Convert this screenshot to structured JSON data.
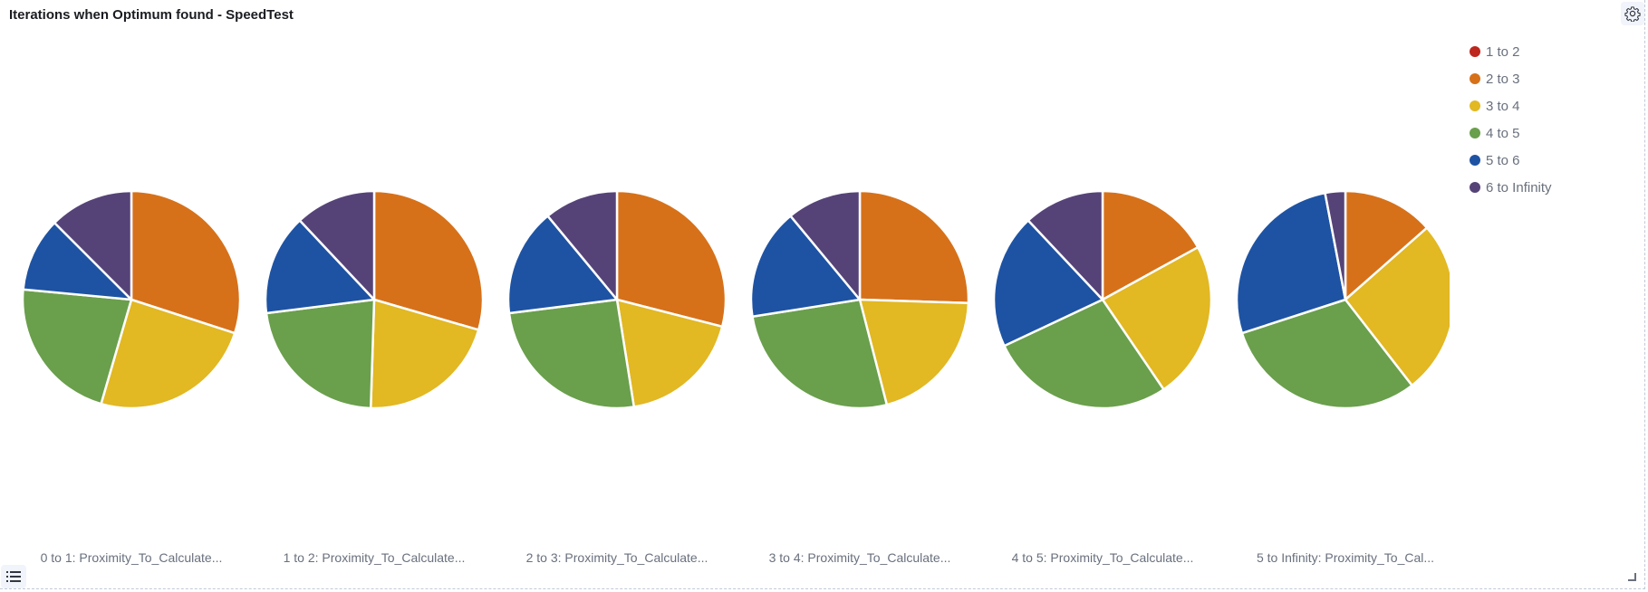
{
  "panel": {
    "title": "Iterations when Optimum found - SpeedTest"
  },
  "icons": {
    "settings": "gear-icon",
    "legend_toggle": "list-icon",
    "resize": "resize-handle-icon"
  },
  "chart_data": {
    "type": "pie",
    "legend_position": "top-right",
    "slice_categories": [
      "1 to 2",
      "2 to 3",
      "3 to 4",
      "4 to 5",
      "5 to 6",
      "6 to Infinity"
    ],
    "colors": [
      "#bd271e",
      "#d6711a",
      "#e2b823",
      "#6a9f4c",
      "#1e53a3",
      "#554378"
    ],
    "pies": [
      {
        "label": "0 to 1: Proximity_To_Calculate...",
        "shares": {
          "2 to 3": 30.0,
          "3 to 4": 24.5,
          "4 to 5": 22.0,
          "5 to 6": 11.0,
          "6 to Infinity": 12.5
        }
      },
      {
        "label": "1 to 2: Proximity_To_Calculate...",
        "shares": {
          "2 to 3": 29.5,
          "3 to 4": 21.0,
          "4 to 5": 22.5,
          "5 to 6": 15.0,
          "6 to Infinity": 12.0
        }
      },
      {
        "label": "2 to 3: Proximity_To_Calculate...",
        "shares": {
          "2 to 3": 29.0,
          "3 to 4": 18.5,
          "4 to 5": 25.5,
          "5 to 6": 16.0,
          "6 to Infinity": 11.0
        }
      },
      {
        "label": "3 to 4: Proximity_To_Calculate...",
        "shares": {
          "2 to 3": 25.5,
          "3 to 4": 20.5,
          "4 to 5": 26.5,
          "5 to 6": 16.5,
          "6 to Infinity": 11.0
        }
      },
      {
        "label": "4 to 5: Proximity_To_Calculate...",
        "shares": {
          "2 to 3": 17.0,
          "3 to 4": 23.5,
          "4 to 5": 27.5,
          "5 to 6": 20.0,
          "6 to Infinity": 12.0
        }
      },
      {
        "label": "5 to Infinity: Proximity_To_Cal...",
        "shares": {
          "2 to 3": 13.5,
          "3 to 4": 26.0,
          "4 to 5": 30.5,
          "5 to 6": 27.0,
          "6 to Infinity": 3.0
        }
      }
    ]
  }
}
